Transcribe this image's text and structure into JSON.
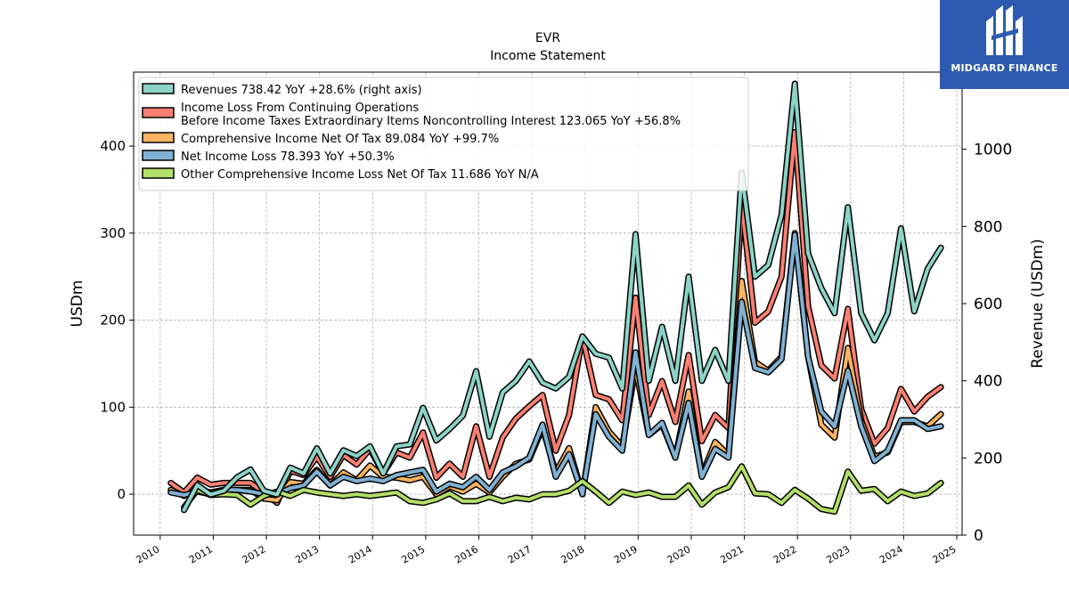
{
  "chart_data": {
    "type": "line",
    "title": "EVR",
    "subtitle": "Income Statement",
    "ylabel": "USDm",
    "ylabel_right": "Revenue (USDm)",
    "ylim": [
      -47,
      485
    ],
    "ylim_right": [
      0,
      1200
    ],
    "yticks": [
      0,
      100,
      200,
      300,
      400
    ],
    "yticks_right": [
      0,
      200,
      400,
      600,
      800,
      1000
    ],
    "xlim": [
      2009.5,
      2025.1
    ],
    "xticks": [
      2010,
      2011,
      2012,
      2013,
      2014,
      2015,
      2016,
      2017,
      2018,
      2019,
      2020,
      2021,
      2022,
      2023,
      2024,
      2025
    ],
    "grid": true,
    "legend_position": "top-left",
    "x": [
      2010.2,
      2010.45,
      2010.7,
      2010.95,
      2011.2,
      2011.45,
      2011.7,
      2011.95,
      2012.2,
      2012.45,
      2012.7,
      2012.95,
      2013.2,
      2013.45,
      2013.7,
      2013.95,
      2014.2,
      2014.45,
      2014.7,
      2014.95,
      2015.2,
      2015.45,
      2015.7,
      2015.95,
      2016.2,
      2016.45,
      2016.7,
      2016.95,
      2017.2,
      2017.45,
      2017.7,
      2017.95,
      2018.2,
      2018.45,
      2018.7,
      2018.95,
      2019.2,
      2019.45,
      2019.7,
      2019.95,
      2020.2,
      2020.45,
      2020.7,
      2020.95,
      2021.2,
      2021.45,
      2021.7,
      2021.95,
      2022.2,
      2022.45,
      2022.7,
      2022.95,
      2023.2,
      2023.45,
      2023.7,
      2023.95,
      2024.2,
      2024.45,
      2024.7
    ],
    "series": [
      {
        "name": "Revenues  738.42 YoY +28.6% (right axis)",
        "axis": "right",
        "color": "#8dd3c7",
        "values": [
          null,
          65,
          130,
          105,
          115,
          150,
          170,
          115,
          105,
          175,
          160,
          225,
          160,
          220,
          205,
          230,
          160,
          230,
          235,
          330,
          245,
          275,
          310,
          425,
          255,
          370,
          400,
          450,
          395,
          380,
          410,
          515,
          470,
          460,
          380,
          780,
          400,
          540,
          400,
          670,
          400,
          480,
          400,
          940,
          670,
          700,
          830,
          1170,
          730,
          640,
          575,
          850,
          575,
          505,
          575,
          795,
          580,
          690,
          745
        ]
      },
      {
        "name": "Income Loss From Continuing Operations\nBefore Income Taxes Extraordinary Items Noncontrolling Interest  123.065 YoY +56.8%",
        "axis": "left",
        "color": "#fb8072",
        "values": [
          13,
          2,
          19,
          11,
          13,
          13,
          13,
          2,
          -10,
          27,
          22,
          43,
          20,
          45,
          34,
          52,
          24,
          48,
          42,
          71,
          19,
          35,
          20,
          78,
          20,
          65,
          87,
          101,
          114,
          50,
          91,
          181,
          114,
          109,
          85,
          226,
          91,
          130,
          83,
          160,
          61,
          91,
          76,
          335,
          197,
          210,
          250,
          416,
          216,
          148,
          133,
          213,
          98,
          58,
          76,
          121,
          95,
          112,
          123
        ]
      },
      {
        "name": "Comprehensive Income Net Of Tax  89.084 YoY +99.7%",
        "axis": "left",
        "color": "#fdb462",
        "values": [
          5,
          -2,
          5,
          2,
          5,
          5,
          5,
          -5,
          -7,
          14,
          12,
          28,
          10,
          25,
          16,
          33,
          20,
          19,
          16,
          20,
          0,
          9,
          3,
          12,
          2,
          20,
          35,
          40,
          76,
          25,
          53,
          0,
          100,
          72,
          55,
          145,
          68,
          80,
          42,
          118,
          22,
          60,
          45,
          245,
          152,
          142,
          158,
          300,
          158,
          80,
          65,
          168,
          85,
          43,
          48,
          83,
          83,
          78,
          92
        ]
      },
      {
        "name": "Net Income Loss  78.393 YoY +50.3%",
        "axis": "left",
        "color": "#80b1d3",
        "values": [
          2,
          -1,
          3,
          0,
          5,
          5,
          3,
          0,
          0,
          7,
          10,
          26,
          10,
          20,
          15,
          18,
          15,
          22,
          25,
          28,
          3,
          12,
          8,
          20,
          5,
          25,
          32,
          42,
          80,
          20,
          46,
          0,
          92,
          66,
          50,
          163,
          68,
          82,
          42,
          105,
          20,
          52,
          42,
          221,
          145,
          140,
          155,
          298,
          158,
          95,
          78,
          142,
          78,
          38,
          50,
          85,
          85,
          75,
          78
        ]
      },
      {
        "name": "Other Comprehensive Income Loss Net Of Tax  11.686 YoY N/A",
        "axis": "left",
        "color": "#b3de69",
        "values": [
          null,
          -15,
          5,
          -1,
          0,
          -1,
          -12,
          -2,
          3,
          -2,
          5,
          2,
          0,
          -2,
          0,
          -2,
          0,
          2,
          -8,
          -10,
          -6,
          1,
          -8,
          -8,
          -3,
          -8,
          -4,
          -6,
          0,
          0,
          4,
          15,
          3,
          -10,
          3,
          -1,
          2,
          -3,
          -3,
          10,
          -12,
          2,
          8,
          32,
          1,
          0,
          -10,
          5,
          -5,
          -17,
          -20,
          26,
          4,
          6,
          -8,
          3,
          -2,
          1,
          13
        ]
      }
    ]
  },
  "logo": {
    "text": "MIDGARD FINANCE"
  }
}
